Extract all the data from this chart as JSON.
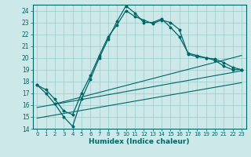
{
  "title": "",
  "xlabel": "Humidex (Indice chaleur)",
  "bg_color": "#cce8e8",
  "grid_color": "#99cccc",
  "line_color": "#006666",
  "xlim": [
    -0.5,
    23.5
  ],
  "ylim": [
    14,
    24.5
  ],
  "yticks": [
    14,
    15,
    16,
    17,
    18,
    19,
    20,
    21,
    22,
    23,
    24
  ],
  "xticks": [
    0,
    1,
    2,
    3,
    4,
    5,
    6,
    7,
    8,
    9,
    10,
    11,
    12,
    13,
    14,
    15,
    16,
    17,
    18,
    19,
    20,
    21,
    22,
    23
  ],
  "xtick_labels": [
    "0",
    "1",
    "2",
    "3",
    "4",
    "5",
    "6",
    "7",
    "8",
    "9",
    "10",
    "11",
    "12",
    "13",
    "14",
    "15",
    "16",
    "17",
    "18",
    "19",
    "20",
    "21",
    "22",
    "23"
  ],
  "ytick_labels": [
    "14",
    "15",
    "16",
    "17",
    "18",
    "19",
    "20",
    "21",
    "22",
    "23",
    "24"
  ],
  "curve1_x": [
    0,
    1,
    2,
    3,
    4,
    5,
    6,
    7,
    8,
    9,
    10,
    11,
    12,
    13,
    14,
    15,
    16,
    17,
    18,
    19,
    20,
    21,
    22,
    23
  ],
  "curve1_y": [
    17.7,
    17.0,
    16.1,
    15.0,
    14.2,
    16.5,
    18.2,
    20.0,
    21.6,
    23.1,
    24.4,
    23.8,
    23.0,
    23.0,
    23.3,
    22.6,
    21.8,
    20.4,
    20.2,
    20.0,
    19.8,
    19.3,
    19.0,
    19.0
  ],
  "curve2_x": [
    0,
    1,
    2,
    3,
    4,
    5,
    6,
    7,
    8,
    9,
    10,
    11,
    12,
    13,
    14,
    15,
    16,
    17,
    18,
    19,
    20,
    21,
    22,
    23
  ],
  "curve2_y": [
    17.7,
    17.3,
    16.5,
    15.5,
    15.2,
    17.0,
    18.5,
    20.2,
    21.8,
    22.8,
    24.0,
    23.5,
    23.2,
    22.9,
    23.2,
    23.0,
    22.4,
    20.3,
    20.1,
    20.0,
    19.9,
    19.6,
    19.2,
    19.0
  ],
  "line1_x": [
    0,
    23
  ],
  "line1_y": [
    14.9,
    17.9
  ],
  "line2_x": [
    0,
    23
  ],
  "line2_y": [
    15.8,
    18.9
  ],
  "line3_x": [
    2,
    23
  ],
  "line3_y": [
    16.1,
    20.2
  ]
}
